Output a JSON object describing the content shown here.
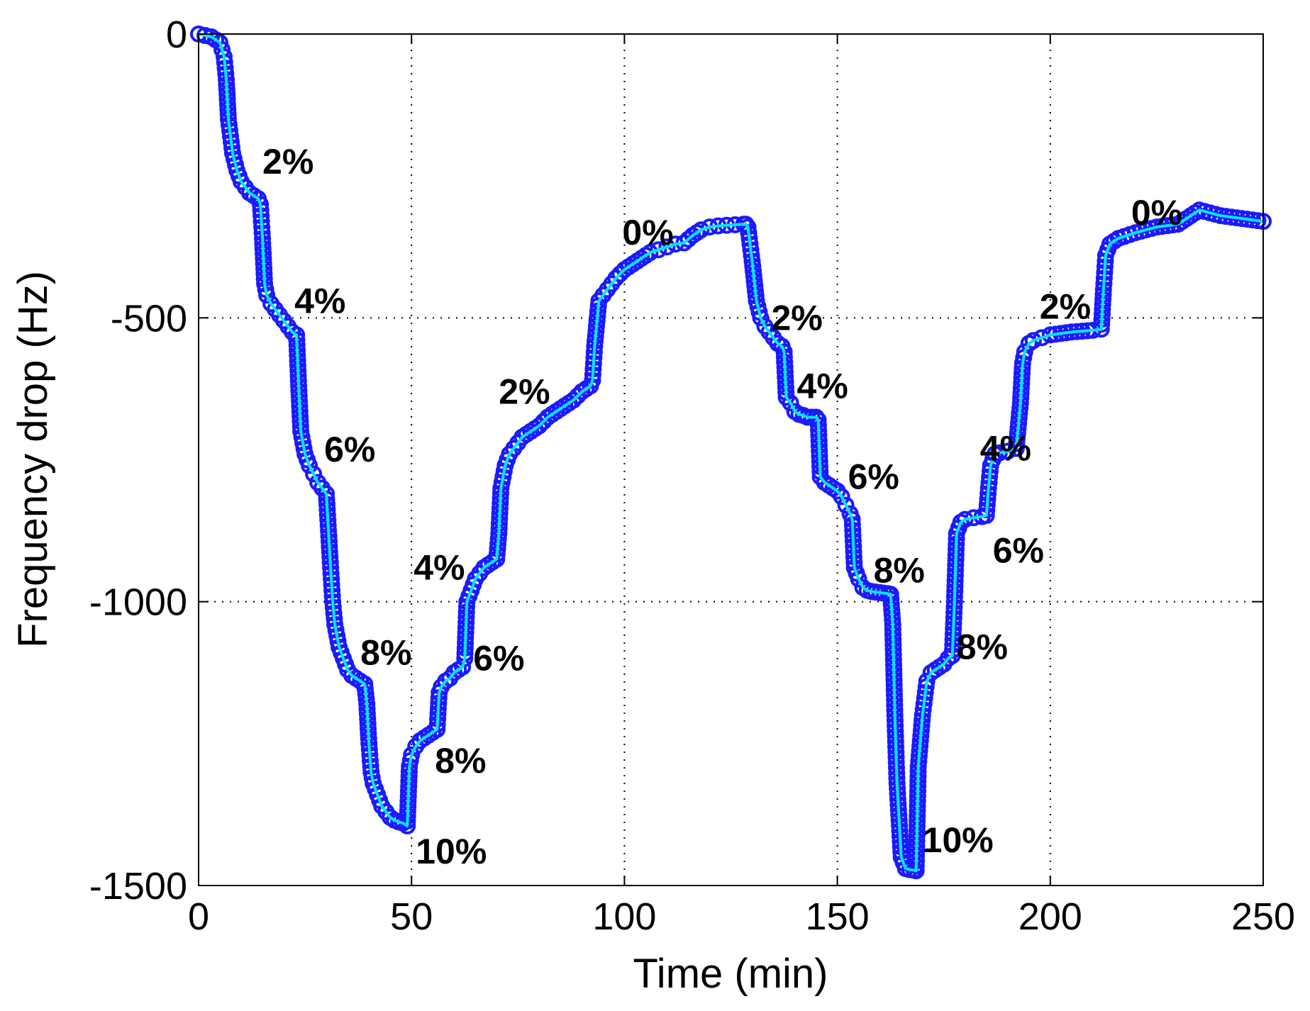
{
  "chart_data": {
    "type": "line",
    "title": "",
    "xlabel": "Time (min)",
    "ylabel": "Frequency drop (Hz)",
    "xlim": [
      0,
      250
    ],
    "ylim": [
      -1500,
      0
    ],
    "grid": true,
    "xticks": [
      0,
      50,
      100,
      150,
      200,
      250
    ],
    "yticks": [
      0,
      -500,
      -1000,
      -1500
    ],
    "xtick_labels": [
      "0",
      "50",
      "100",
      "150",
      "200",
      "250"
    ],
    "ytick_labels": [
      "0",
      "-500",
      "-1000",
      "-1500"
    ],
    "series": [
      {
        "name": "frequency drop",
        "color": "#00e5ee",
        "marker": "circle",
        "marker_color": "#1a1aff",
        "x": [
          0,
          3,
          5,
          6,
          6.5,
          7,
          8,
          9,
          10,
          11,
          12,
          13,
          14,
          14.5,
          15,
          15.5,
          16,
          17,
          18,
          19,
          20,
          21,
          22,
          23,
          23.5,
          24,
          24.5,
          25,
          26,
          27,
          28,
          29,
          30,
          31,
          31.5,
          32,
          33,
          34,
          35,
          36,
          37,
          38,
          39,
          39.5,
          40,
          40.5,
          41,
          42,
          43,
          44,
          45,
          46,
          47,
          48,
          49,
          49.5,
          50,
          51,
          52,
          53,
          54,
          55,
          56,
          56.5,
          57,
          58,
          59,
          60,
          61,
          62,
          62.5,
          63,
          64,
          65,
          66,
          67,
          68,
          69,
          70,
          70.5,
          71,
          72,
          73,
          74,
          75,
          76,
          78,
          80,
          82,
          84,
          86,
          88,
          90,
          92,
          92.5,
          93,
          94,
          96,
          98,
          100,
          102,
          104,
          106,
          108,
          110,
          112,
          114,
          116,
          118,
          120,
          122,
          124,
          126,
          128,
          128.5,
          129,
          130,
          131,
          132,
          133,
          134,
          135,
          136,
          137,
          137.5,
          138,
          139,
          140,
          141,
          142,
          143,
          144,
          145,
          145.5,
          146,
          147,
          148,
          149,
          150,
          151,
          152,
          153,
          153.5,
          154,
          155,
          156,
          157,
          158,
          159,
          160,
          161,
          162,
          162.5,
          163,
          163.5,
          164,
          165,
          166,
          167,
          168,
          168.5,
          169,
          170,
          171,
          172,
          173,
          174,
          175,
          176,
          177,
          177.5,
          178,
          179,
          180,
          182,
          184,
          185,
          185.5,
          186,
          187,
          188,
          190,
          192,
          193,
          193.5,
          194,
          195,
          196,
          198,
          200,
          205,
          210,
          212,
          212.5,
          213,
          214,
          216,
          220,
          225,
          230,
          233,
          235,
          240,
          245,
          250
        ],
        "y": [
          0,
          -5,
          -15,
          -40,
          -80,
          -150,
          -210,
          -240,
          -260,
          -270,
          -280,
          -285,
          -290,
          -300,
          -360,
          -440,
          -460,
          -475,
          -485,
          -495,
          -505,
          -515,
          -525,
          -530,
          -620,
          -700,
          -720,
          -740,
          -760,
          -775,
          -790,
          -800,
          -810,
          -940,
          -1000,
          -1040,
          -1080,
          -1100,
          -1120,
          -1130,
          -1135,
          -1140,
          -1145,
          -1180,
          -1250,
          -1300,
          -1320,
          -1340,
          -1360,
          -1370,
          -1380,
          -1385,
          -1388,
          -1390,
          -1395,
          -1290,
          -1270,
          -1255,
          -1245,
          -1240,
          -1235,
          -1230,
          -1225,
          -1160,
          -1150,
          -1140,
          -1135,
          -1125,
          -1120,
          -1115,
          -1100,
          -1000,
          -980,
          -960,
          -950,
          -940,
          -935,
          -930,
          -925,
          -880,
          -800,
          -760,
          -740,
          -730,
          -720,
          -710,
          -700,
          -690,
          -675,
          -665,
          -655,
          -645,
          -630,
          -620,
          -610,
          -550,
          -470,
          -450,
          -430,
          -415,
          -405,
          -395,
          -385,
          -380,
          -375,
          -370,
          -368,
          -355,
          -345,
          -340,
          -338,
          -337,
          -336,
          -335,
          -335,
          -340,
          -400,
          -470,
          -500,
          -515,
          -525,
          -535,
          -545,
          -550,
          -560,
          -640,
          -650,
          -665,
          -670,
          -672,
          -675,
          -675,
          -675,
          -680,
          -780,
          -790,
          -795,
          -800,
          -805,
          -815,
          -830,
          -845,
          -855,
          -940,
          -960,
          -975,
          -980,
          -982,
          -983,
          -984,
          -985,
          -986,
          -987,
          -1040,
          -1200,
          -1320,
          -1450,
          -1470,
          -1472,
          -1473,
          -1474,
          -1290,
          -1200,
          -1140,
          -1125,
          -1120,
          -1115,
          -1110,
          -1100,
          -1095,
          -1000,
          -880,
          -860,
          -855,
          -852,
          -850,
          -848,
          -800,
          -760,
          -740,
          -738,
          -735,
          -730,
          -650,
          -580,
          -560,
          -545,
          -540,
          -535,
          -530,
          -525,
          -522,
          -520,
          -450,
          -390,
          -370,
          -360,
          -350,
          -340,
          -335,
          -320,
          -310,
          -320,
          -325,
          -330
        ]
      }
    ],
    "annotations": [
      {
        "text": "2%",
        "x": 15,
        "y": -225
      },
      {
        "text": "4%",
        "x": 22.5,
        "y": -470
      },
      {
        "text": "6%",
        "x": 29.5,
        "y": -732
      },
      {
        "text": "8%",
        "x": 38,
        "y": -1090
      },
      {
        "text": "10%",
        "x": 51,
        "y": -1440
      },
      {
        "text": "8%",
        "x": 55.5,
        "y": -1280
      },
      {
        "text": "6%",
        "x": 64.5,
        "y": -1100
      },
      {
        "text": "4%",
        "x": 50.5,
        "y": -940
      },
      {
        "text": "2%",
        "x": 70.5,
        "y": -630
      },
      {
        "text": "0%",
        "x": 99.5,
        "y": -350
      },
      {
        "text": "2%",
        "x": 134.5,
        "y": -500
      },
      {
        "text": "4%",
        "x": 140.5,
        "y": -620
      },
      {
        "text": "6%",
        "x": 152.5,
        "y": -780
      },
      {
        "text": "8%",
        "x": 158.5,
        "y": -945
      },
      {
        "text": "10%",
        "x": 170,
        "y": -1420
      },
      {
        "text": "8%",
        "x": 178,
        "y": -1080
      },
      {
        "text": "6%",
        "x": 186.5,
        "y": -910
      },
      {
        "text": "4%",
        "x": 183.5,
        "y": -730
      },
      {
        "text": "2%",
        "x": 197.5,
        "y": -480
      },
      {
        "text": "0%",
        "x": 219,
        "y": -315
      }
    ]
  }
}
